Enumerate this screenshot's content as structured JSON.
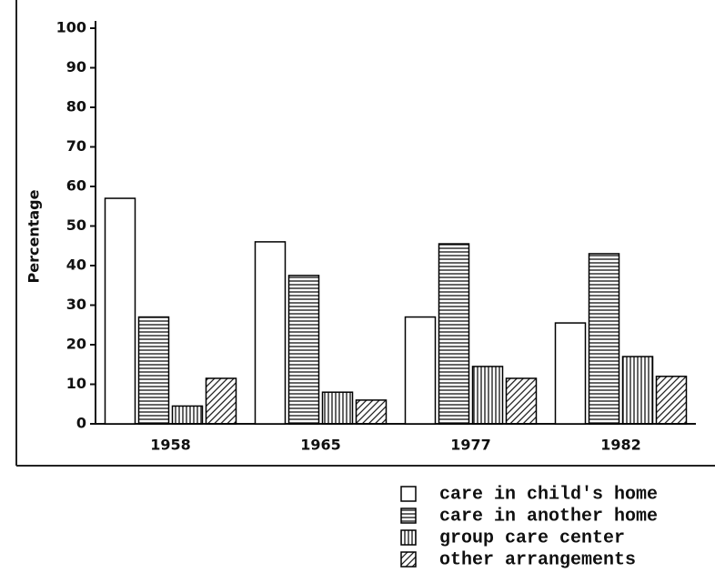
{
  "chart_data": {
    "type": "bar",
    "y_label": "Percentage",
    "categories": [
      "1958",
      "1965",
      "1977",
      "1982"
    ],
    "series": [
      {
        "name": "care in child's home",
        "color": "#000000",
        "pattern": "none",
        "values": [
          57,
          46,
          27,
          25.5
        ]
      },
      {
        "name": "care in another home",
        "color": "#000000",
        "pattern": "horizontal",
        "values": [
          27,
          37.5,
          45.5,
          43
        ]
      },
      {
        "name": "group care center",
        "color": "#000000",
        "pattern": "vertical",
        "values": [
          4.5,
          8,
          14.5,
          17
        ]
      },
      {
        "name": "other arrangements",
        "color": "#000000",
        "pattern": "diagonal",
        "values": [
          11.5,
          6,
          11.5,
          12
        ]
      }
    ],
    "ylim": [
      0,
      100
    ],
    "yticks": [
      0,
      10,
      20,
      30,
      40,
      50,
      60,
      70,
      80,
      90,
      100
    ],
    "grid": false,
    "legend": "bottom-right"
  }
}
